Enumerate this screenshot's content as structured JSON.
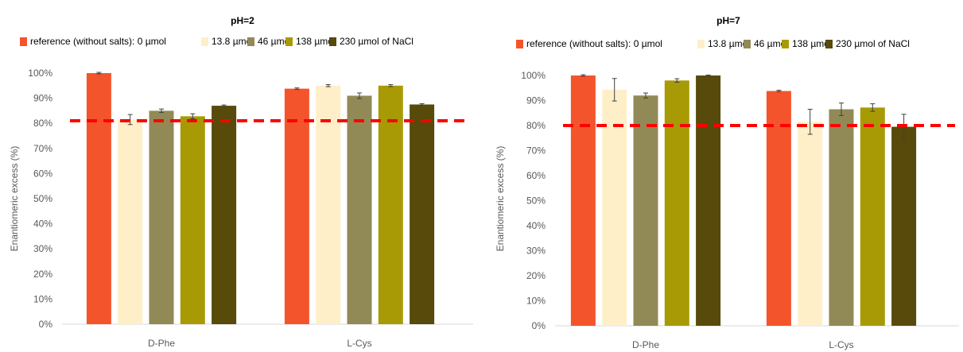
{
  "chart_data": [
    {
      "type": "bar",
      "title": "pH=2",
      "xlabel": "",
      "ylabel": "Enantiomeric excess (%)",
      "ylim": [
        0,
        100
      ],
      "yticks": [
        "0%",
        "10%",
        "20%",
        "30%",
        "40%",
        "50%",
        "60%",
        "70%",
        "80%",
        "90%",
        "100%"
      ],
      "categories": [
        "D-Phe",
        "L-Cys"
      ],
      "legend_position": "top",
      "series": [
        {
          "name": "reference (without salts): 0 µmol",
          "color": "#F4542C",
          "values": [
            100,
            93.8
          ],
          "errors": [
            0.3,
            0.3
          ]
        },
        {
          "name": "13.8 µmol",
          "color": "#FFEFC9",
          "values": [
            81.5,
            95
          ],
          "errors": [
            2,
            0.4
          ]
        },
        {
          "name": "46 µmol",
          "color": "#928A56",
          "values": [
            85,
            91
          ],
          "errors": [
            0.7,
            1.1
          ]
        },
        {
          "name": "138 µmol",
          "color": "#A89A04",
          "values": [
            82.8,
            95
          ],
          "errors": [
            1,
            0.4
          ]
        },
        {
          "name": "230 µmol of NaCl",
          "color": "#574A0A",
          "values": [
            87,
            87.5
          ],
          "errors": [
            0.3,
            0.3
          ]
        }
      ],
      "reference_line": {
        "value": 81,
        "color": "#FF0000",
        "style": "dashed"
      }
    },
    {
      "type": "bar",
      "title": "pH=7",
      "xlabel": "",
      "ylabel": "Enantiomeric excess (%)",
      "ylim": [
        0,
        100
      ],
      "yticks": [
        "0%",
        "10%",
        "20%",
        "30%",
        "40%",
        "50%",
        "60%",
        "70%",
        "80%",
        "90%",
        "100%"
      ],
      "categories": [
        "D-Phe",
        "L-Cys"
      ],
      "legend_position": "top",
      "series": [
        {
          "name": "reference (without salts): 0 µmol",
          "color": "#F4542C",
          "values": [
            100,
            93.8
          ],
          "errors": [
            0.3,
            0.3
          ]
        },
        {
          "name": "13.8 µmol",
          "color": "#FFEFC9",
          "values": [
            94.3,
            81.5
          ],
          "errors": [
            4.5,
            5
          ]
        },
        {
          "name": "46 µmol",
          "color": "#928A56",
          "values": [
            92,
            86.5
          ],
          "errors": [
            1,
            2.5
          ]
        },
        {
          "name": "138 µmol",
          "color": "#A89A04",
          "values": [
            98,
            87.2
          ],
          "errors": [
            0.7,
            1.5
          ]
        },
        {
          "name": "230 µmol of NaCl",
          "color": "#574A0A",
          "values": [
            100,
            79.5
          ],
          "errors": [
            0.2,
            5
          ]
        }
      ],
      "reference_line": {
        "value": 80,
        "color": "#FF0000",
        "style": "dashed"
      }
    }
  ]
}
